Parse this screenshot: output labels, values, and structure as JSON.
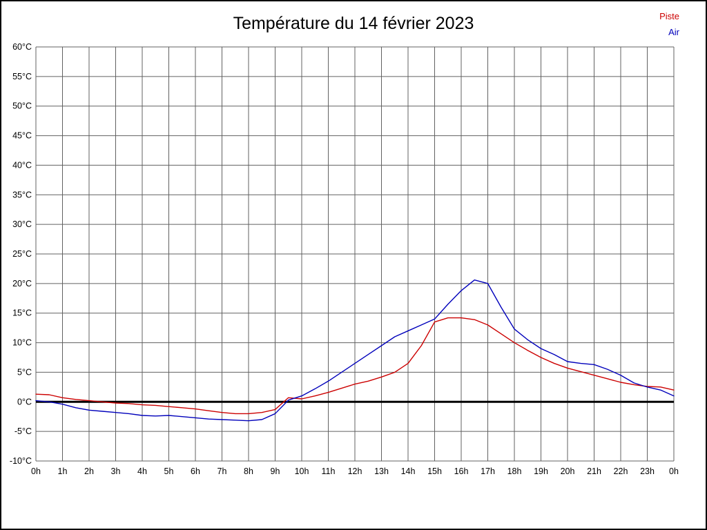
{
  "title": "Température du 14 février 2023",
  "legend": [
    {
      "label": "Piste",
      "color": "#cc0000"
    },
    {
      "label": "Air",
      "color": "#0000bb"
    }
  ],
  "chart_data": {
    "type": "line",
    "title": "Température du 14 février 2023",
    "xlabel": "",
    "ylabel": "",
    "xlim": [
      0,
      24
    ],
    "ylim": [
      -10,
      60
    ],
    "grid": true,
    "grid_color": "#606060",
    "zero_line": {
      "value": 0,
      "color": "#000000",
      "width": 3
    },
    "x_tick_labels": [
      "0h",
      "1h",
      "2h",
      "3h",
      "4h",
      "5h",
      "6h",
      "7h",
      "8h",
      "9h",
      "10h",
      "11h",
      "12h",
      "13h",
      "14h",
      "15h",
      "16h",
      "17h",
      "18h",
      "19h",
      "20h",
      "21h",
      "22h",
      "23h",
      "0h"
    ],
    "x_tick_values": [
      0,
      1,
      2,
      3,
      4,
      5,
      6,
      7,
      8,
      9,
      10,
      11,
      12,
      13,
      14,
      15,
      16,
      17,
      18,
      19,
      20,
      21,
      22,
      23,
      24
    ],
    "y_tick_labels": [
      "60°C",
      "55°C",
      "50°C",
      "45°C",
      "40°C",
      "35°C",
      "30°C",
      "25°C",
      "20°C",
      "15°C",
      "10°C",
      "5°C",
      "0°C",
      "-5°C",
      "-10°C"
    ],
    "y_tick_values": [
      60,
      55,
      50,
      45,
      40,
      35,
      30,
      25,
      20,
      15,
      10,
      5,
      0,
      -5,
      -10
    ],
    "legend_position": "top-right",
    "x": [
      0,
      0.5,
      1,
      1.5,
      2,
      2.5,
      3,
      3.5,
      4,
      4.5,
      5,
      5.5,
      6,
      6.5,
      7,
      7.5,
      8,
      8.5,
      9,
      9.5,
      10,
      10.5,
      11,
      11.5,
      12,
      12.5,
      13,
      13.5,
      14,
      14.5,
      15,
      15.5,
      16,
      16.5,
      17,
      17.5,
      18,
      18.5,
      19,
      19.5,
      20,
      20.5,
      21,
      21.5,
      22,
      22.5,
      23,
      23.5,
      24
    ],
    "series": [
      {
        "name": "Piste",
        "color": "#cc0000",
        "values": [
          1.3,
          1.2,
          0.7,
          0.4,
          0.2,
          0.0,
          -0.2,
          -0.3,
          -0.5,
          -0.6,
          -0.8,
          -1.0,
          -1.2,
          -1.5,
          -1.8,
          -2.0,
          -2.0,
          -1.8,
          -1.3,
          0.7,
          0.5,
          1.0,
          1.6,
          2.3,
          3.0,
          3.5,
          4.2,
          5.0,
          6.5,
          9.5,
          13.5,
          14.2,
          14.2,
          13.9,
          13.0,
          11.5,
          10.0,
          8.7,
          7.5,
          6.5,
          5.7,
          5.1,
          4.5,
          3.9,
          3.3,
          2.9,
          2.6,
          2.5,
          2.0
        ]
      },
      {
        "name": "Air",
        "color": "#0000bb",
        "values": [
          0.2,
          0.0,
          -0.4,
          -1.0,
          -1.4,
          -1.6,
          -1.8,
          -2.0,
          -2.3,
          -2.4,
          -2.3,
          -2.5,
          -2.7,
          -2.9,
          -3.0,
          -3.1,
          -3.2,
          -3.0,
          -2.0,
          0.3,
          1.0,
          2.2,
          3.5,
          5.0,
          6.5,
          8.0,
          9.5,
          11.0,
          12.0,
          13.0,
          14.0,
          16.5,
          18.8,
          20.6,
          20.0,
          16.0,
          12.3,
          10.5,
          9.0,
          8.0,
          6.8,
          6.5,
          6.3,
          5.5,
          4.5,
          3.2,
          2.5,
          2.0,
          1.0
        ]
      }
    ]
  }
}
